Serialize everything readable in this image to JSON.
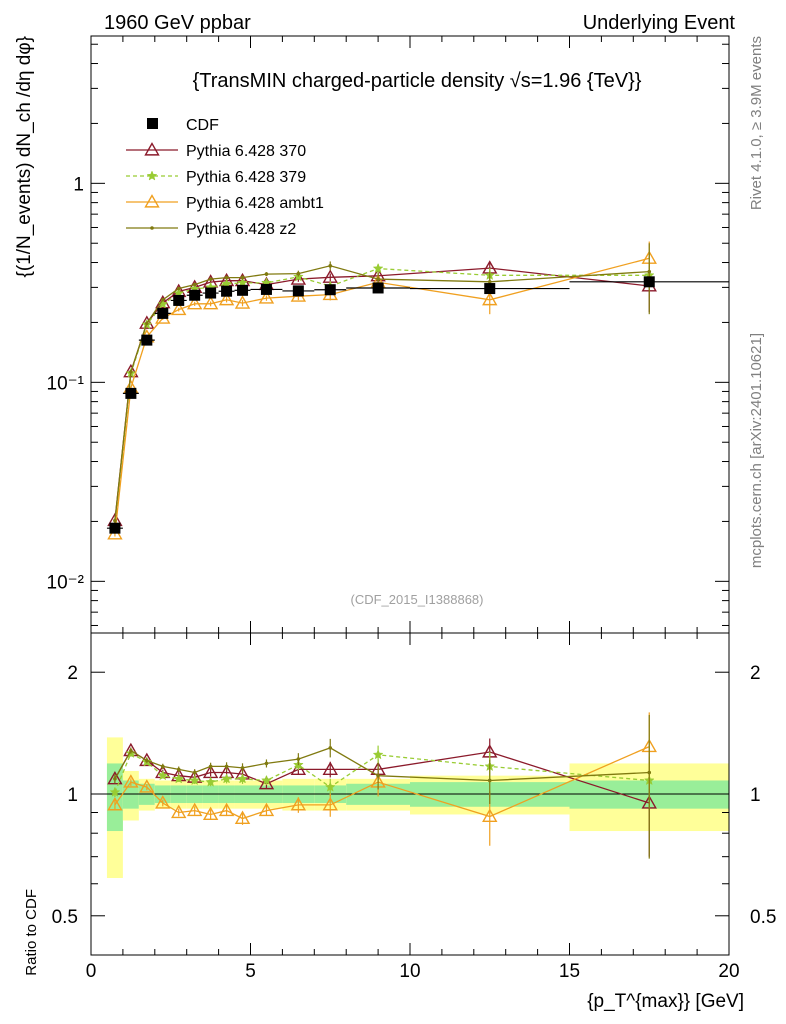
{
  "header": {
    "left": "1960 GeV ppbar",
    "right": "Underlying Event"
  },
  "side": {
    "rivet": "Rivet 4.1.0, ≥ 3.9M events",
    "mcplots": "mcplots.cern.ch [arXiv:2401.10621]"
  },
  "chart_data": {
    "type": "line",
    "title": "{TransMIN charged-particle density √s=1.96 {TeV}}",
    "watermark": "(CDF_2015_I1388868)",
    "xlabel": "{p_T^{max}} [GeV]",
    "ylabel": "{(1/N_events) dN_ch /dη dφ}",
    "ratio_ylabel": "Ratio to CDF",
    "xlim": [
      0,
      20
    ],
    "ylim": [
      0.0055,
      5.5
    ],
    "yscale": "log",
    "ratio_ylim": [
      0.4,
      2.5
    ],
    "ratio_yscale": "log",
    "x_ticks": [
      0,
      5,
      10,
      15,
      20
    ],
    "x_tick_labels": [
      "0",
      "5",
      "10",
      "15",
      "20"
    ],
    "y_ticks": [
      0.01,
      0.1,
      1
    ],
    "y_tick_labels": [
      "10⁻²",
      "10⁻¹",
      "1"
    ],
    "ratio_ticks": [
      0.5,
      1,
      2
    ],
    "ratio_tick_labels": [
      "0.5",
      "1",
      "2"
    ],
    "data": {
      "name": "CDF",
      "x": [
        0.75,
        1.25,
        1.75,
        2.25,
        2.75,
        3.25,
        3.75,
        4.25,
        4.75,
        5.5,
        6.5,
        7.5,
        9.0,
        12.5,
        17.5
      ],
      "xerr": [
        0.25,
        0.25,
        0.25,
        0.25,
        0.25,
        0.25,
        0.25,
        0.25,
        0.25,
        0.5,
        0.5,
        0.5,
        1.0,
        2.5,
        2.5
      ],
      "y": [
        0.0185,
        0.088,
        0.163,
        0.222,
        0.258,
        0.274,
        0.281,
        0.287,
        0.29,
        0.293,
        0.288,
        0.292,
        0.298,
        0.296,
        0.32
      ],
      "band_stat": [
        0.19,
        0.08,
        0.06,
        0.05,
        0.05,
        0.05,
        0.05,
        0.05,
        0.05,
        0.05,
        0.05,
        0.05,
        0.06,
        0.07,
        0.08
      ],
      "band_total": [
        0.38,
        0.14,
        0.09,
        0.08,
        0.08,
        0.08,
        0.08,
        0.08,
        0.08,
        0.08,
        0.09,
        0.09,
        0.09,
        0.11,
        0.19
      ]
    },
    "series": [
      {
        "name": "Pythia 6.428 370",
        "color": "#8b1a2b",
        "marker": "triangle-open",
        "dash": "solid",
        "x": [
          0.75,
          1.25,
          1.75,
          2.25,
          2.75,
          3.25,
          3.75,
          4.25,
          4.75,
          5.5,
          6.5,
          7.5,
          9.0,
          12.5,
          17.5
        ],
        "y": [
          0.0202,
          0.113,
          0.198,
          0.251,
          0.286,
          0.3,
          0.319,
          0.324,
          0.324,
          0.31,
          0.33,
          0.337,
          0.343,
          0.375,
          0.305
        ],
        "yerr": [
          0.0005,
          0.002,
          0.003,
          0.004,
          0.005,
          0.006,
          0.007,
          0.008,
          0.009,
          0.008,
          0.01,
          0.015,
          0.02,
          0.03,
          0.08
        ],
        "ratio": [
          1.09,
          1.28,
          1.21,
          1.13,
          1.11,
          1.1,
          1.13,
          1.13,
          1.12,
          1.06,
          1.15,
          1.15,
          1.15,
          1.27,
          0.95
        ]
      },
      {
        "name": "Pythia 6.428 379",
        "color": "#99cc33",
        "marker": "star",
        "dash": "dashed",
        "x": [
          0.75,
          1.25,
          1.75,
          2.25,
          2.75,
          3.25,
          3.75,
          4.25,
          4.75,
          5.5,
          6.5,
          7.5,
          9.0,
          12.5,
          17.5
        ],
        "y": [
          0.0187,
          0.111,
          0.195,
          0.247,
          0.28,
          0.295,
          0.3,
          0.312,
          0.316,
          0.316,
          0.339,
          0.304,
          0.373,
          0.345,
          0.345
        ],
        "yerr": [
          0.0005,
          0.002,
          0.003,
          0.004,
          0.005,
          0.006,
          0.007,
          0.008,
          0.009,
          0.008,
          0.01,
          0.015,
          0.02,
          0.03,
          0.05
        ],
        "ratio": [
          1.01,
          1.26,
          1.2,
          1.11,
          1.09,
          1.08,
          1.07,
          1.09,
          1.09,
          1.08,
          1.18,
          1.04,
          1.25,
          1.17,
          1.08
        ]
      },
      {
        "name": "Pythia 6.428 ambt1",
        "color": "#f0a020",
        "marker": "triangle-open",
        "dash": "solid",
        "x": [
          0.75,
          1.25,
          1.75,
          2.25,
          2.75,
          3.25,
          3.75,
          4.25,
          4.75,
          5.5,
          6.5,
          7.5,
          9.0,
          12.5,
          17.5
        ],
        "y": [
          0.0173,
          0.094,
          0.169,
          0.21,
          0.232,
          0.248,
          0.248,
          0.26,
          0.25,
          0.265,
          0.271,
          0.276,
          0.318,
          0.26,
          0.42
        ],
        "yerr": [
          0.0005,
          0.002,
          0.003,
          0.004,
          0.005,
          0.006,
          0.007,
          0.008,
          0.009,
          0.008,
          0.012,
          0.018,
          0.025,
          0.04,
          0.09
        ],
        "ratio": [
          0.94,
          1.07,
          1.04,
          0.95,
          0.9,
          0.91,
          0.89,
          0.91,
          0.87,
          0.91,
          0.94,
          0.94,
          1.07,
          0.88,
          1.31
        ]
      },
      {
        "name": "Pythia 6.428 z2",
        "color": "#807a10",
        "marker": "dot",
        "dash": "solid",
        "x": [
          0.75,
          1.25,
          1.75,
          2.25,
          2.75,
          3.25,
          3.75,
          4.25,
          4.75,
          5.5,
          6.5,
          7.5,
          9.0,
          12.5,
          17.5
        ],
        "y": [
          0.0202,
          0.113,
          0.198,
          0.26,
          0.296,
          0.31,
          0.33,
          0.336,
          0.336,
          0.35,
          0.352,
          0.385,
          0.33,
          0.32,
          0.36
        ],
        "yerr": [
          0.0005,
          0.002,
          0.003,
          0.004,
          0.005,
          0.006,
          0.007,
          0.008,
          0.009,
          0.008,
          0.012,
          0.02,
          0.025,
          0.04,
          0.14
        ],
        "ratio": [
          1.09,
          1.28,
          1.21,
          1.17,
          1.15,
          1.13,
          1.17,
          1.17,
          1.16,
          1.19,
          1.22,
          1.3,
          1.11,
          1.08,
          1.13
        ]
      }
    ]
  }
}
